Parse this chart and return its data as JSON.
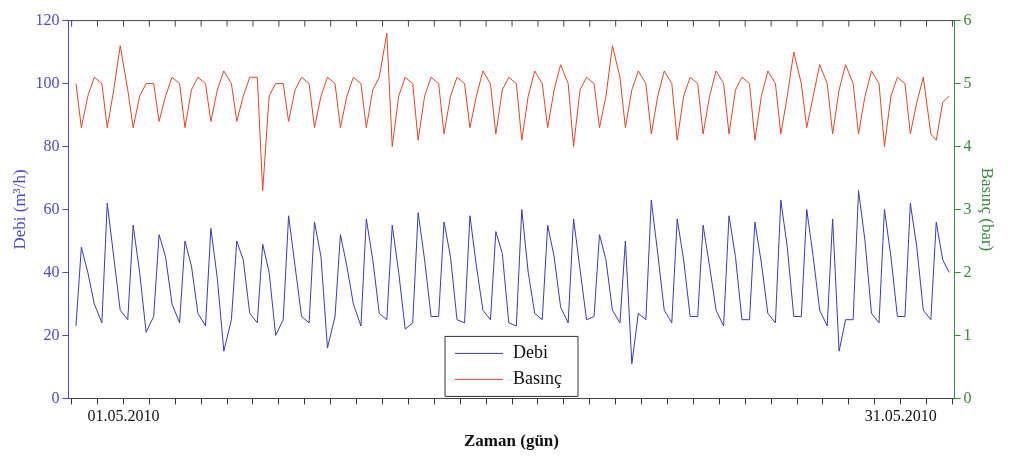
{
  "chart_data": {
    "type": "line",
    "xlabel": "Zaman (gün)",
    "ylabel": "Debi (m³/h)",
    "y2label": "Basınç (bar)",
    "xlim": [
      "2010-04-28T21:00",
      "2010-06-02T02:00"
    ],
    "xticks": [
      {
        "value": "2010-04-29",
        "label": null
      },
      {
        "value": "2010-04-30",
        "label": null
      },
      {
        "value": "2010-05-01",
        "label": "01.05.2010"
      },
      {
        "value": "2010-05-02",
        "label": null
      },
      {
        "value": "2010-05-03",
        "label": null
      },
      {
        "value": "2010-05-04",
        "label": null
      },
      {
        "value": "2010-05-05",
        "label": null
      },
      {
        "value": "2010-05-06",
        "label": null
      },
      {
        "value": "2010-05-07",
        "label": null
      },
      {
        "value": "2010-05-08",
        "label": null
      },
      {
        "value": "2010-05-09",
        "label": null
      },
      {
        "value": "2010-05-10",
        "label": null
      },
      {
        "value": "2010-05-11",
        "label": null
      },
      {
        "value": "2010-05-12",
        "label": null
      },
      {
        "value": "2010-05-13",
        "label": null
      },
      {
        "value": "2010-05-14",
        "label": null
      },
      {
        "value": "2010-05-15",
        "label": null
      },
      {
        "value": "2010-05-16",
        "label": null
      },
      {
        "value": "2010-05-17",
        "label": null
      },
      {
        "value": "2010-05-18",
        "label": null
      },
      {
        "value": "2010-05-19",
        "label": null
      },
      {
        "value": "2010-05-20",
        "label": null
      },
      {
        "value": "2010-05-21",
        "label": null
      },
      {
        "value": "2010-05-22",
        "label": null
      },
      {
        "value": "2010-05-23",
        "label": null
      },
      {
        "value": "2010-05-24",
        "label": null
      },
      {
        "value": "2010-05-25",
        "label": null
      },
      {
        "value": "2010-05-26",
        "label": null
      },
      {
        "value": "2010-05-27",
        "label": null
      },
      {
        "value": "2010-05-28",
        "label": null
      },
      {
        "value": "2010-05-29",
        "label": null
      },
      {
        "value": "2010-05-30",
        "label": null
      },
      {
        "value": "2010-05-31",
        "label": "31.05.2010"
      },
      {
        "value": "2010-06-01",
        "label": null
      },
      {
        "value": "2010-06-02",
        "label": null
      }
    ],
    "ylim": [
      0,
      120
    ],
    "yticks": [
      0,
      20,
      40,
      60,
      80,
      100,
      120
    ],
    "y2lim": [
      0,
      6
    ],
    "y2ticks": [
      0,
      1,
      2,
      3,
      4,
      5,
      6
    ],
    "grid": false,
    "legend": "bottom",
    "line_style": "solid",
    "marker": "none",
    "x": [
      "2010-04-29T04:00",
      "2010-04-29T09:00",
      "2010-04-29T15:00",
      "2010-04-29T21:00",
      "2010-04-30T04:00",
      "2010-04-30T09:00",
      "2010-04-30T15:00",
      "2010-04-30T21:00",
      "2010-05-01T04:00",
      "2010-05-01T09:00",
      "2010-05-01T15:00",
      "2010-05-01T21:00",
      "2010-05-02T04:00",
      "2010-05-02T09:00",
      "2010-05-02T15:00",
      "2010-05-02T21:00",
      "2010-05-03T04:00",
      "2010-05-03T09:00",
      "2010-05-03T15:00",
      "2010-05-03T21:00",
      "2010-05-04T04:00",
      "2010-05-04T09:00",
      "2010-05-04T15:00",
      "2010-05-04T21:00",
      "2010-05-05T04:00",
      "2010-05-05T09:00",
      "2010-05-05T15:00",
      "2010-05-05T21:00",
      "2010-05-06T04:00",
      "2010-05-06T09:00",
      "2010-05-06T15:00",
      "2010-05-06T21:00",
      "2010-05-07T04:00",
      "2010-05-07T09:00",
      "2010-05-07T15:00",
      "2010-05-07T21:00",
      "2010-05-08T04:00",
      "2010-05-08T09:00",
      "2010-05-08T15:00",
      "2010-05-08T21:00",
      "2010-05-09T04:00",
      "2010-05-09T09:00",
      "2010-05-09T15:00",
      "2010-05-09T21:00",
      "2010-05-10T04:00",
      "2010-05-10T09:00",
      "2010-05-10T15:00",
      "2010-05-10T21:00",
      "2010-05-11T04:00",
      "2010-05-11T09:00",
      "2010-05-11T15:00",
      "2010-05-11T21:00",
      "2010-05-12T04:00",
      "2010-05-12T09:00",
      "2010-05-12T15:00",
      "2010-05-12T21:00",
      "2010-05-13T04:00",
      "2010-05-13T09:00",
      "2010-05-13T15:00",
      "2010-05-13T21:00",
      "2010-05-14T04:00",
      "2010-05-14T09:00",
      "2010-05-14T15:00",
      "2010-05-14T21:00",
      "2010-05-15T04:00",
      "2010-05-15T09:00",
      "2010-05-15T15:00",
      "2010-05-15T21:00",
      "2010-05-16T04:00",
      "2010-05-16T09:00",
      "2010-05-16T15:00",
      "2010-05-16T21:00",
      "2010-05-17T04:00",
      "2010-05-17T09:00",
      "2010-05-17T15:00",
      "2010-05-17T21:00",
      "2010-05-18T04:00",
      "2010-05-18T09:00",
      "2010-05-18T15:00",
      "2010-05-18T21:00",
      "2010-05-19T04:00",
      "2010-05-19T09:00",
      "2010-05-19T15:00",
      "2010-05-19T21:00",
      "2010-05-20T04:00",
      "2010-05-20T09:00",
      "2010-05-20T15:00",
      "2010-05-20T21:00",
      "2010-05-21T04:00",
      "2010-05-21T09:00",
      "2010-05-21T15:00",
      "2010-05-21T21:00",
      "2010-05-22T04:00",
      "2010-05-22T09:00",
      "2010-05-22T15:00",
      "2010-05-22T21:00",
      "2010-05-23T04:00",
      "2010-05-23T09:00",
      "2010-05-23T15:00",
      "2010-05-23T21:00",
      "2010-05-24T04:00",
      "2010-05-24T09:00",
      "2010-05-24T15:00",
      "2010-05-24T21:00",
      "2010-05-25T04:00",
      "2010-05-25T09:00",
      "2010-05-25T15:00",
      "2010-05-25T21:00",
      "2010-05-26T04:00",
      "2010-05-26T09:00",
      "2010-05-26T15:00",
      "2010-05-26T21:00",
      "2010-05-27T04:00",
      "2010-05-27T09:00",
      "2010-05-27T15:00",
      "2010-05-27T21:00",
      "2010-05-28T04:00",
      "2010-05-28T09:00",
      "2010-05-28T15:00",
      "2010-05-28T21:00",
      "2010-05-29T04:00",
      "2010-05-29T09:00",
      "2010-05-29T15:00",
      "2010-05-29T21:00",
      "2010-05-30T04:00",
      "2010-05-30T09:00",
      "2010-05-30T15:00",
      "2010-05-30T21:00",
      "2010-05-31T04:00",
      "2010-05-31T09:00",
      "2010-05-31T15:00",
      "2010-05-31T21:00",
      "2010-06-01T04:00",
      "2010-06-01T09:00",
      "2010-06-01T15:00",
      "2010-06-01T21:00"
    ],
    "series": [
      {
        "name": "Debi",
        "color": "#3a3ab8",
        "values": [
          23,
          48,
          40,
          30,
          24,
          62,
          45,
          28,
          25,
          55,
          40,
          21,
          26,
          52,
          45,
          30,
          24,
          50,
          42,
          27,
          23,
          54,
          38,
          15,
          25,
          50,
          44,
          27,
          24,
          49,
          40,
          20,
          25,
          58,
          42,
          26,
          24,
          56,
          45,
          16,
          26,
          52,
          42,
          30,
          23,
          57,
          44,
          27,
          25,
          55,
          40,
          22,
          24,
          59,
          44,
          26,
          26,
          56,
          45,
          25,
          24,
          58,
          42,
          28,
          25,
          53,
          46,
          24,
          23,
          60,
          40,
          27,
          25,
          55,
          45,
          29,
          24,
          57,
          41,
          25,
          26,
          52,
          44,
          28,
          24,
          50,
          11,
          27,
          25,
          63,
          46,
          28,
          24,
          57,
          44,
          26,
          26,
          55,
          42,
          28,
          23,
          58,
          45,
          25,
          25,
          56,
          43,
          27,
          24,
          63,
          48,
          26,
          26,
          60,
          45,
          28,
          23,
          57,
          15,
          25,
          25,
          66,
          50,
          27,
          24,
          60,
          45,
          26,
          26,
          62,
          48,
          28,
          25,
          56,
          44,
          40
        ]
      },
      {
        "name": "Basınç",
        "color": "#e0442a",
        "axis": "y2",
        "values": [
          5.0,
          4.3,
          4.8,
          5.1,
          5.0,
          4.3,
          4.9,
          5.6,
          4.9,
          4.3,
          4.8,
          5.0,
          5.0,
          4.4,
          4.8,
          5.1,
          5.0,
          4.3,
          4.9,
          5.1,
          5.0,
          4.4,
          4.9,
          5.2,
          5.0,
          4.4,
          4.8,
          5.1,
          5.1,
          3.3,
          4.8,
          5.0,
          5.0,
          4.4,
          4.9,
          5.1,
          5.0,
          4.3,
          4.8,
          5.1,
          5.0,
          4.3,
          4.8,
          5.1,
          5.0,
          4.3,
          4.9,
          5.1,
          5.8,
          4.0,
          4.8,
          5.1,
          5.0,
          4.1,
          4.8,
          5.1,
          5.0,
          4.2,
          4.8,
          5.1,
          5.0,
          4.3,
          4.8,
          5.2,
          5.0,
          4.2,
          4.9,
          5.1,
          5.0,
          4.1,
          4.8,
          5.2,
          5.0,
          4.3,
          4.9,
          5.3,
          5.0,
          4.0,
          4.9,
          5.1,
          5.0,
          4.3,
          4.8,
          5.6,
          5.1,
          4.3,
          4.9,
          5.2,
          5.0,
          4.2,
          4.8,
          5.2,
          5.0,
          4.1,
          4.8,
          5.1,
          5.0,
          4.2,
          4.8,
          5.2,
          5.0,
          4.2,
          4.9,
          5.1,
          5.0,
          4.1,
          4.8,
          5.2,
          5.0,
          4.2,
          4.8,
          5.5,
          5.0,
          4.3,
          4.8,
          5.3,
          5.0,
          4.2,
          4.9,
          5.3,
          5.0,
          4.2,
          4.8,
          5.2,
          5.0,
          4.0,
          4.8,
          5.1,
          5.0,
          4.2,
          4.7,
          5.1,
          4.2,
          4.1,
          4.7,
          4.8
        ]
      }
    ]
  }
}
